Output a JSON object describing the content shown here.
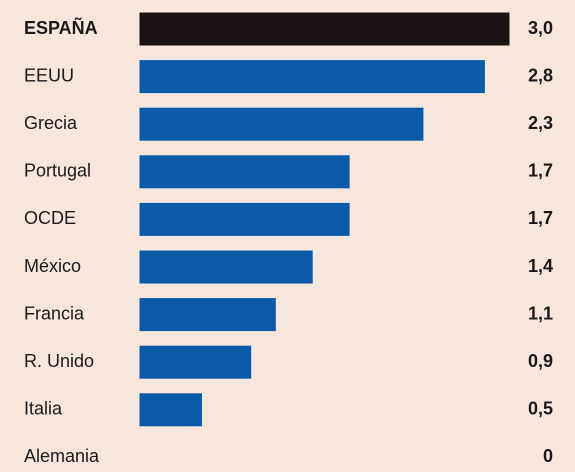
{
  "chart_data": {
    "type": "hbar",
    "categories": [
      "ESPAÑA",
      "EEUU",
      "Grecia",
      "Portugal",
      "OCDE",
      "México",
      "Francia",
      "R. Unido",
      "Italia",
      "Alemania"
    ],
    "values": [
      3.0,
      2.8,
      2.3,
      1.7,
      1.7,
      1.4,
      1.1,
      0.9,
      0.5,
      0
    ],
    "value_labels": [
      "3,0",
      "2,8",
      "2,3",
      "1,7",
      "1,7",
      "1,4",
      "1,1",
      "0,9",
      "0,5",
      "0"
    ],
    "colors": [
      "#1c1414",
      "#0a5aa8",
      "#0a5aa8",
      "#0a5aa8",
      "#0a5aa8",
      "#0a5aa8",
      "#0a5aa8",
      "#0a5aa8",
      "#0a5aa8",
      "#0a5aa8"
    ],
    "highlight": "ESPAÑA",
    "xlim": [
      0,
      3.0
    ]
  }
}
